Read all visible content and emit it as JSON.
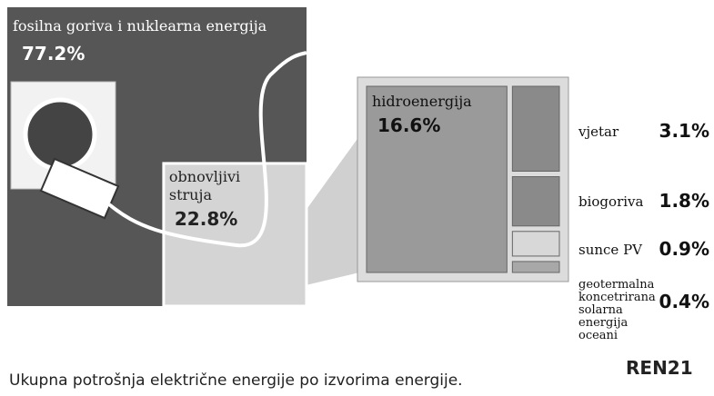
{
  "chart_data": {
    "type": "treemap",
    "caption": "Ukupna potrošnja električne energije po izvorima energije.",
    "logo": "REN21",
    "outer": [
      {
        "name": "fosilna goriva i nuklearna energija",
        "value": 77.2,
        "value_label": "77.2%",
        "color": "#565656"
      },
      {
        "name": [
          "obnovljivi",
          "struja"
        ],
        "value": 22.8,
        "value_label": "22.8%",
        "color": "#d4d4d4"
      }
    ],
    "inner": [
      {
        "name": [
          "hidroenergija"
        ],
        "value": 16.6,
        "value_label": "16.6%",
        "color": "#9a9a9a"
      },
      {
        "name": [
          "vjetar"
        ],
        "value": 3.1,
        "value_label": "3.1%",
        "color": "#8a8a8a"
      },
      {
        "name": [
          "biogoriva"
        ],
        "value": 1.8,
        "value_label": "1.8%",
        "color": "#8a8a8a"
      },
      {
        "name": [
          "sunce PV"
        ],
        "value": 0.9,
        "value_label": "0.9%",
        "color": "#d8d8d8"
      },
      {
        "name": [
          "geotermalna",
          "koncetrirana",
          "solarna",
          "energija",
          "oceani"
        ],
        "value": 0.4,
        "value_label": "0.4%",
        "color": "#a8a8a8"
      }
    ]
  }
}
